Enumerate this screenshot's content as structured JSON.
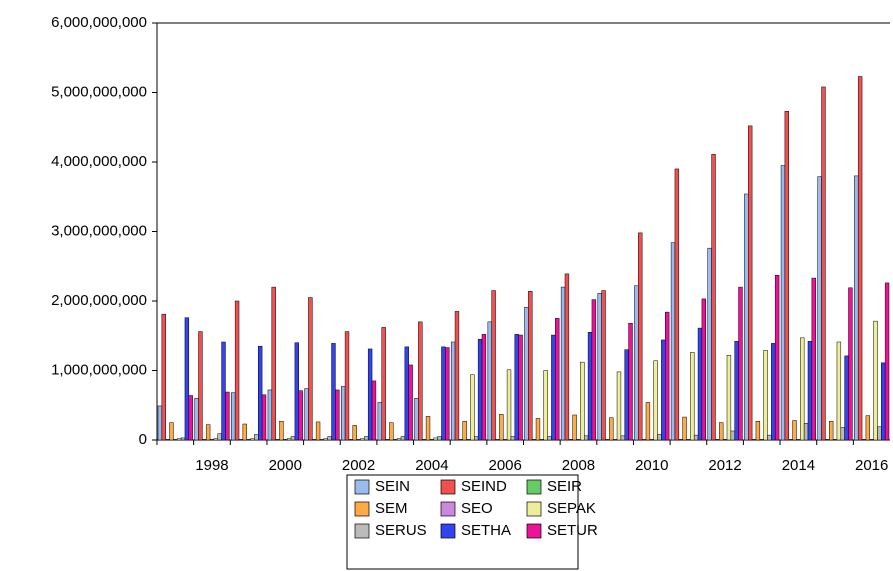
{
  "chart_data": {
    "type": "bar",
    "categories": [
      null,
      "1998",
      null,
      "2000",
      null,
      "2002",
      null,
      "2004",
      null,
      "2006",
      null,
      "2008",
      null,
      "2010",
      null,
      "2012",
      null,
      "2014",
      null,
      "2016"
    ],
    "series": [
      {
        "name": "SEIN",
        "color": "#99bbee",
        "values": [
          490000000,
          600000000,
          680000000,
          720000000,
          740000000,
          770000000,
          540000000,
          600000000,
          1410000000,
          1700000000,
          1910000000,
          2200000000,
          2110000000,
          2220000000,
          2840000000,
          2760000000,
          3540000000,
          3950000000,
          3790000000,
          3800000000
        ]
      },
      {
        "name": "SEIND",
        "color": "#f05050",
        "values": [
          1810000000,
          1560000000,
          2000000000,
          2200000000,
          2050000000,
          1560000000,
          1620000000,
          1700000000,
          1850000000,
          2150000000,
          2140000000,
          2390000000,
          2150000000,
          2980000000,
          3900000000,
          4110000000,
          4520000000,
          4730000000,
          5080000000,
          5230000000
        ]
      },
      {
        "name": "SEIR",
        "color": "#66cc66",
        "values": [
          10000000,
          10000000,
          10000000,
          10000000,
          10000000,
          10000000,
          10000000,
          10000000,
          10000000,
          10000000,
          10000000,
          10000000,
          10000000,
          10000000,
          10000000,
          10000000,
          10000000,
          10000000,
          10000000,
          10000000
        ]
      },
      {
        "name": "SEM",
        "color": "#ffaa44",
        "values": [
          250000000,
          220000000,
          230000000,
          270000000,
          260000000,
          210000000,
          250000000,
          340000000,
          270000000,
          370000000,
          310000000,
          360000000,
          320000000,
          540000000,
          330000000,
          250000000,
          270000000,
          280000000,
          270000000,
          350000000
        ]
      },
      {
        "name": "SEO",
        "color": "#cc88dd",
        "values": [
          10000000,
          10000000,
          10000000,
          10000000,
          10000000,
          10000000,
          10000000,
          10000000,
          10000000,
          10000000,
          10000000,
          10000000,
          10000000,
          10000000,
          10000000,
          10000000,
          10000000,
          10000000,
          10000000,
          10000000
        ]
      },
      {
        "name": "SEPAK",
        "color": "#eeee99",
        "values": [
          20000000,
          20000000,
          20000000,
          20000000,
          20000000,
          20000000,
          20000000,
          30000000,
          940000000,
          1010000000,
          1000000000,
          1120000000,
          980000000,
          1140000000,
          1260000000,
          1220000000,
          1290000000,
          1470000000,
          1410000000,
          1710000000
        ]
      },
      {
        "name": "SERUS",
        "color": "#bbbbbb",
        "values": [
          30000000,
          90000000,
          80000000,
          50000000,
          50000000,
          50000000,
          50000000,
          50000000,
          50000000,
          50000000,
          50000000,
          60000000,
          60000000,
          80000000,
          70000000,
          130000000,
          70000000,
          240000000,
          180000000,
          190000000
        ]
      },
      {
        "name": "SETHA",
        "color": "#3344ee",
        "values": [
          1760000000,
          1410000000,
          1350000000,
          1400000000,
          1390000000,
          1310000000,
          1340000000,
          1340000000,
          1450000000,
          1520000000,
          1510000000,
          1550000000,
          1300000000,
          1440000000,
          1610000000,
          1420000000,
          1390000000,
          1420000000,
          1210000000,
          1110000000
        ]
      },
      {
        "name": "SETUR",
        "color": "#ee1199",
        "values": [
          640000000,
          690000000,
          650000000,
          710000000,
          720000000,
          850000000,
          1080000000,
          1330000000,
          1520000000,
          1510000000,
          1750000000,
          2020000000,
          1680000000,
          1840000000,
          2030000000,
          2200000000,
          2370000000,
          2330000000,
          2190000000,
          2260000000
        ]
      }
    ],
    "ylim": [
      0,
      6000000000
    ],
    "yticks": [
      0,
      {
        "value": 1000000000,
        "label": "1,000,000,000"
      },
      {
        "value": 2000000000,
        "label": "2,000,000,000"
      },
      {
        "value": 3000000000,
        "label": "3,000,000,000"
      },
      {
        "value": 4000000000,
        "label": "4,000,000,000"
      },
      {
        "value": 5000000000,
        "label": "5,000,000,000"
      },
      {
        "value": 6000000000,
        "label": "6,000,000,000"
      }
    ]
  }
}
